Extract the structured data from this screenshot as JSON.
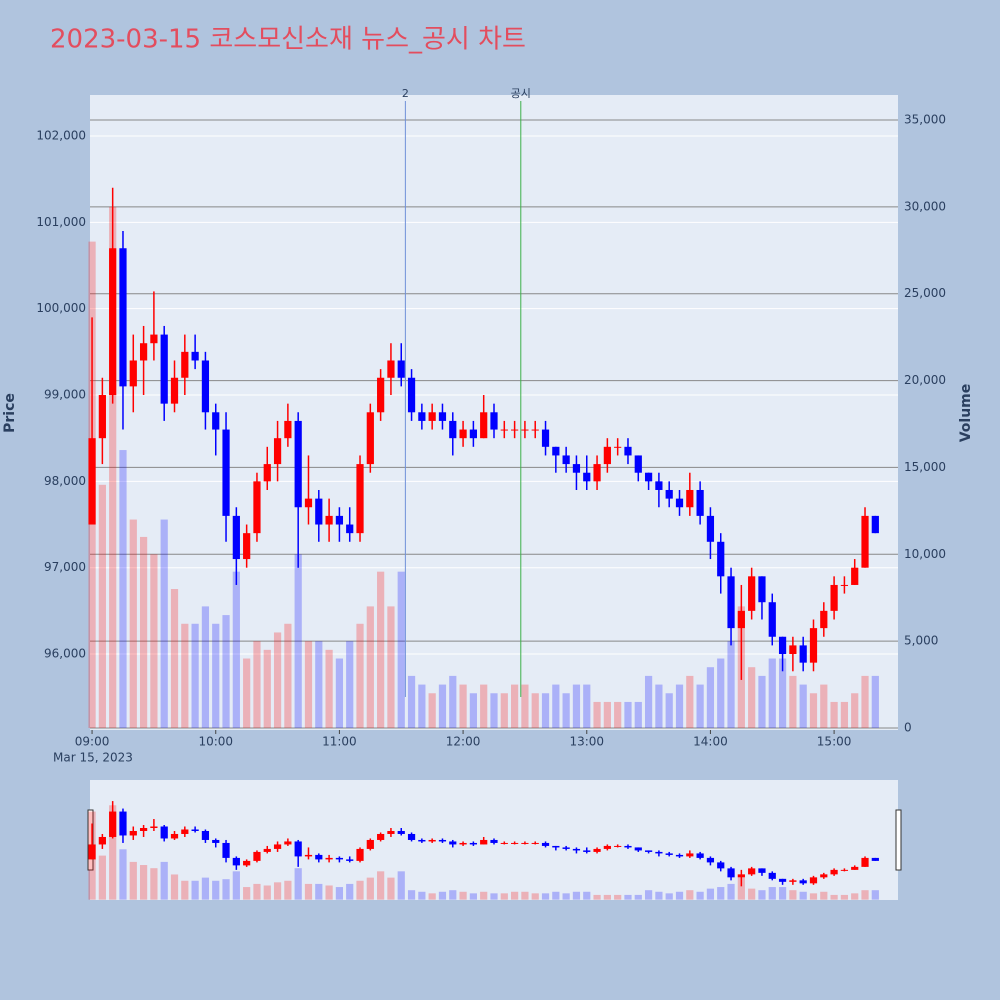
{
  "chart_data": {
    "type": "candlestick",
    "title": "2023-03-15 코스모신소재 뉴스_공시 차트",
    "y_label": "Price",
    "y2_label": "Volume",
    "date_label": "Mar 15, 2023",
    "increasing_color": "#ff0000",
    "decreasing_color": "#0000ff",
    "title_color": "#e34d5e",
    "x": [
      "09:00",
      "09:05",
      "09:10",
      "09:15",
      "09:20",
      "09:25",
      "09:30",
      "09:35",
      "09:40",
      "09:45",
      "09:50",
      "09:55",
      "10:00",
      "10:05",
      "10:10",
      "10:15",
      "10:20",
      "10:25",
      "10:30",
      "10:35",
      "10:40",
      "10:45",
      "10:50",
      "10:55",
      "11:00",
      "11:05",
      "11:10",
      "11:15",
      "11:20",
      "11:25",
      "11:30",
      "11:35",
      "11:40",
      "11:45",
      "11:50",
      "11:55",
      "12:00",
      "12:05",
      "12:10",
      "12:15",
      "12:20",
      "12:25",
      "12:30",
      "12:35",
      "12:40",
      "12:45",
      "12:50",
      "12:55",
      "13:00",
      "13:05",
      "13:10",
      "13:15",
      "13:20",
      "13:25",
      "13:30",
      "13:35",
      "13:40",
      "13:45",
      "13:50",
      "13:55",
      "14:00",
      "14:05",
      "14:10",
      "14:15",
      "14:20",
      "14:25",
      "14:30",
      "14:35",
      "14:40",
      "14:45",
      "14:50",
      "14:55",
      "15:00",
      "15:05",
      "15:10",
      "15:15",
      "15:20"
    ],
    "open": [
      97500,
      98500,
      99000,
      100700,
      99100,
      99400,
      99600,
      99700,
      98900,
      99200,
      99500,
      99400,
      98800,
      98600,
      97600,
      97100,
      97400,
      98000,
      98200,
      98500,
      98700,
      97700,
      97800,
      97500,
      97600,
      97500,
      97400,
      98200,
      98800,
      99200,
      99400,
      99200,
      98800,
      98700,
      98800,
      98700,
      98500,
      98600,
      98500,
      98800,
      98600,
      98600,
      98600,
      98600,
      98600,
      98400,
      98300,
      98200,
      98100,
      98000,
      98200,
      98400,
      98400,
      98300,
      98100,
      98000,
      97900,
      97800,
      97700,
      97900,
      97600,
      97300,
      96900,
      96300,
      96500,
      96900,
      96600,
      96200,
      96000,
      96100,
      95900,
      96300,
      96500,
      96800,
      96800,
      97000,
      97600
    ],
    "high": [
      99900,
      99200,
      101400,
      100900,
      99700,
      99800,
      100200,
      99800,
      99400,
      99700,
      99700,
      99500,
      98900,
      98800,
      97700,
      97500,
      98100,
      98400,
      98700,
      98900,
      98800,
      98300,
      97900,
      97800,
      97700,
      97700,
      98300,
      98900,
      99300,
      99600,
      99600,
      99300,
      98900,
      98900,
      98900,
      98800,
      98700,
      98700,
      99000,
      98900,
      98700,
      98700,
      98700,
      98700,
      98700,
      98400,
      98400,
      98300,
      98300,
      98300,
      98500,
      98500,
      98500,
      98300,
      98100,
      98100,
      98000,
      97900,
      98100,
      98000,
      97700,
      97400,
      97000,
      96800,
      97000,
      96900,
      96700,
      96200,
      96200,
      96200,
      96400,
      96600,
      96900,
      96900,
      97100,
      97700,
      97600
    ],
    "low": [
      97500,
      98200,
      98900,
      98600,
      98800,
      99000,
      99400,
      98700,
      98800,
      99000,
      99300,
      98600,
      98300,
      97300,
      96800,
      97000,
      97300,
      97900,
      98000,
      98400,
      97000,
      97500,
      97300,
      97300,
      97300,
      97300,
      97300,
      98100,
      98700,
      99000,
      99100,
      98700,
      98600,
      98600,
      98600,
      98300,
      98400,
      98400,
      98500,
      98500,
      98500,
      98500,
      98500,
      98500,
      98300,
      98100,
      98100,
      97900,
      97900,
      97900,
      98100,
      98300,
      98200,
      98000,
      97900,
      97700,
      97700,
      97600,
      97600,
      97500,
      97100,
      96700,
      96100,
      95700,
      96400,
      96400,
      96100,
      95800,
      95800,
      95800,
      95800,
      96200,
      96400,
      96700,
      96800,
      97000,
      97400
    ],
    "close": [
      98500,
      99000,
      100700,
      99100,
      99400,
      99600,
      99700,
      98900,
      99200,
      99500,
      99400,
      98800,
      98600,
      97600,
      97100,
      97400,
      98000,
      98200,
      98500,
      98700,
      97700,
      97800,
      97500,
      97600,
      97500,
      97400,
      98200,
      98800,
      99200,
      99400,
      99200,
      98800,
      98700,
      98800,
      98700,
      98500,
      98600,
      98500,
      98800,
      98600,
      98600,
      98600,
      98600,
      98600,
      98400,
      98300,
      98200,
      98100,
      98000,
      98200,
      98400,
      98400,
      98300,
      98100,
      98000,
      97900,
      97800,
      97700,
      97900,
      97600,
      97300,
      96900,
      96300,
      96500,
      96900,
      96600,
      96200,
      96000,
      96100,
      95900,
      96300,
      96500,
      96800,
      96800,
      97000,
      97600,
      97400
    ],
    "volume": [
      28000,
      14000,
      30000,
      16000,
      12000,
      11000,
      10000,
      12000,
      8000,
      6000,
      6000,
      7000,
      6000,
      6500,
      9000,
      4000,
      5000,
      4500,
      5500,
      6000,
      10000,
      5000,
      5000,
      4500,
      4000,
      5000,
      6000,
      7000,
      9000,
      7000,
      9000,
      3000,
      2500,
      2000,
      2500,
      3000,
      2500,
      2000,
      2500,
      2000,
      2000,
      2500,
      2500,
      2000,
      2000,
      2500,
      2000,
      2500,
      2500,
      1500,
      1500,
      1500,
      1500,
      1500,
      3000,
      2500,
      2000,
      2500,
      3000,
      2500,
      3500,
      4000,
      5000,
      7000,
      3500,
      3000,
      4000,
      4000,
      3000,
      2500,
      2000,
      2500,
      1500,
      1500,
      2000,
      3000,
      3000
    ],
    "xlim": [
      "08:59",
      "15:31"
    ],
    "xticks": [
      "09:00",
      "10:00",
      "11:00",
      "12:00",
      "13:00",
      "14:00",
      "15:00"
    ],
    "ylim": [
      95120,
      102475
    ],
    "yticks": [
      {
        "value": 96000,
        "label": "96,000"
      },
      {
        "value": 97000,
        "label": "97,000"
      },
      {
        "value": 98000,
        "label": "98,000"
      },
      {
        "value": 99000,
        "label": "99,000"
      },
      {
        "value": 100000,
        "label": "100,000"
      },
      {
        "value": 101000,
        "label": "101,000"
      },
      {
        "value": 102000,
        "label": "102,000"
      }
    ],
    "y2lim": [
      -115,
      36440
    ],
    "y2ticks": [
      0,
      {
        "value": 5000,
        "label": "5,000"
      },
      {
        "value": 10000,
        "label": "10,000"
      },
      {
        "value": 15000,
        "label": "15,000"
      },
      {
        "value": 20000,
        "label": "20,000"
      },
      {
        "value": 25000,
        "label": "25,000"
      },
      {
        "value": 30000,
        "label": "30,000"
      },
      {
        "value": 35000,
        "label": "35,000"
      }
    ],
    "annotations": [
      {
        "x": "11:32",
        "label": "2",
        "color": "#6f8fd8"
      },
      {
        "x": "12:28",
        "label": "공시",
        "color": "#3cb04a"
      }
    ],
    "grid": true,
    "rangeslider": true
  }
}
